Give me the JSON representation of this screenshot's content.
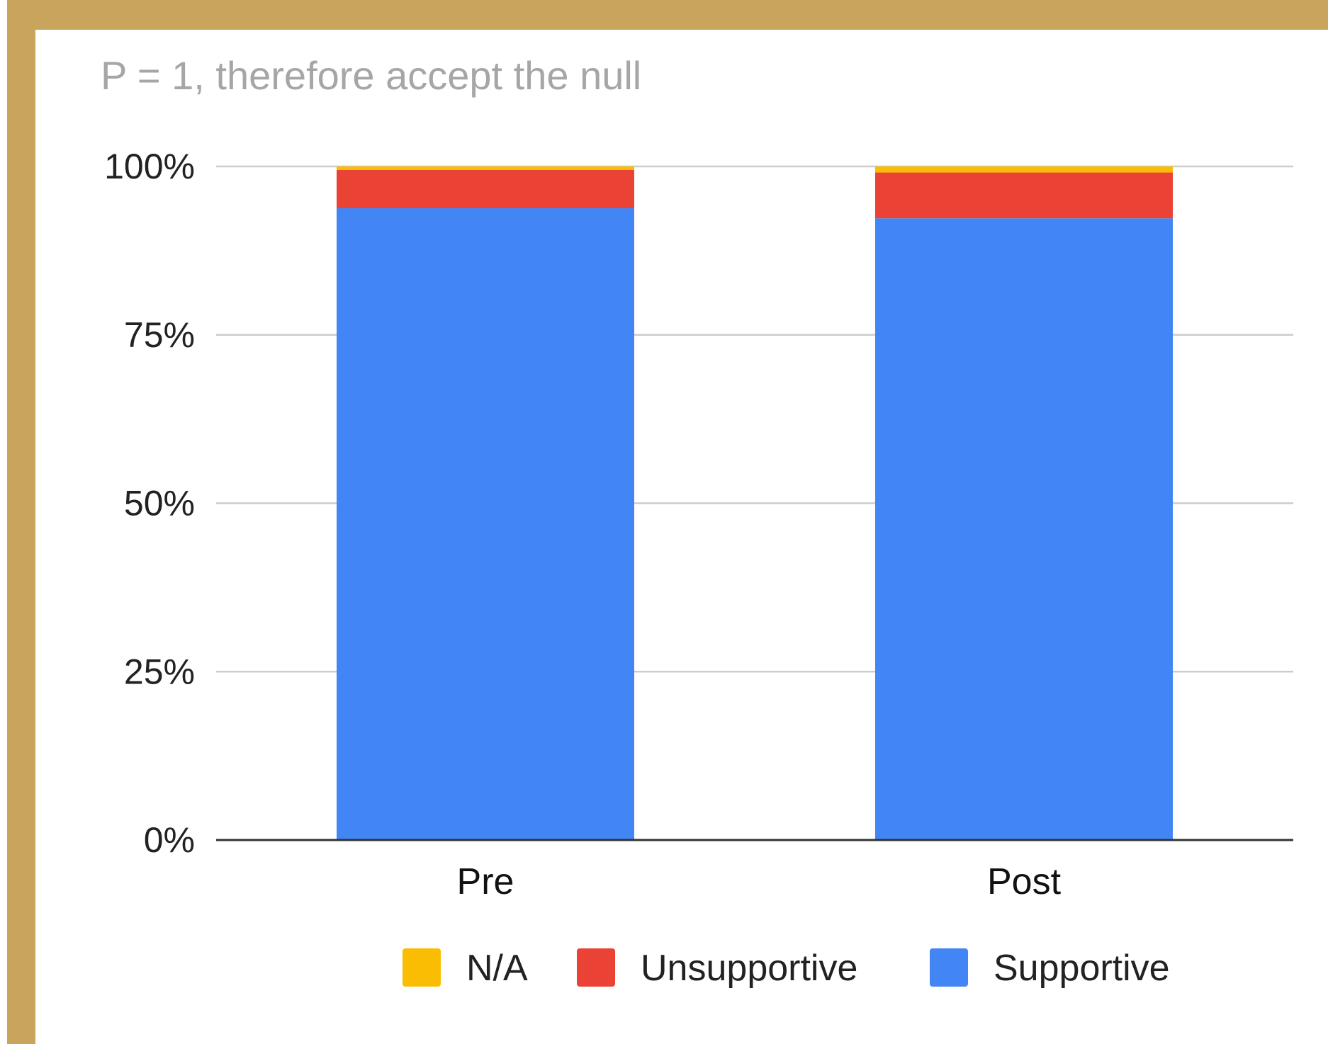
{
  "chart_data": {
    "type": "bar",
    "stacked": true,
    "title": "P = 1, therefore accept the null",
    "xlabel": "",
    "ylabel": "",
    "categories": [
      "Pre",
      "Post"
    ],
    "ylim": [
      0,
      100
    ],
    "yticks": [
      {
        "value": 0,
        "label": "0%"
      },
      {
        "value": 25,
        "label": "25%"
      },
      {
        "value": 50,
        "label": "50%"
      },
      {
        "value": 75,
        "label": "75%"
      },
      {
        "value": 100,
        "label": "100%"
      }
    ],
    "grid": true,
    "legend_position": "bottom",
    "legend_order": [
      "N/A",
      "Unsupportive",
      "Supportive"
    ],
    "series": [
      {
        "name": "Supportive",
        "color": "#4285f4",
        "values": [
          93.8,
          92.3
        ]
      },
      {
        "name": "Unsupportive",
        "color": "#ea4335",
        "values": [
          5.7,
          6.8
        ]
      },
      {
        "name": "N/A",
        "color": "#fbbc04",
        "values": [
          0.5,
          0.9
        ]
      }
    ]
  }
}
